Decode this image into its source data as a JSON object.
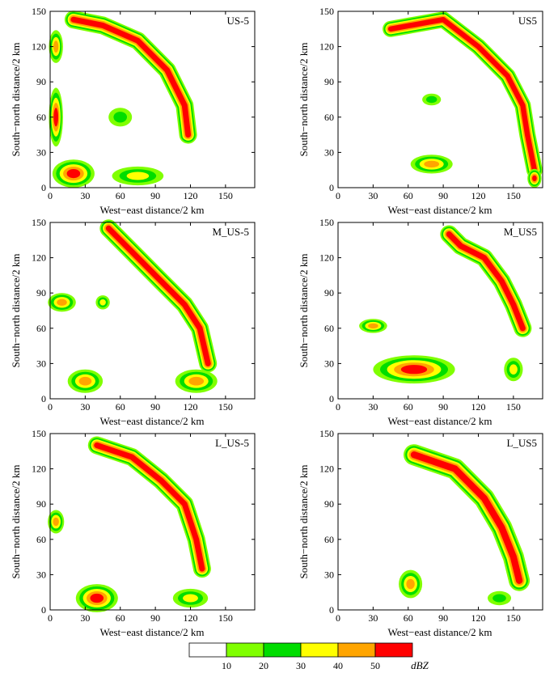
{
  "figure": {
    "xlabel": "West−east distance/2 km",
    "ylabel": "South−north distance/2 km",
    "xticks": [
      "0",
      "30",
      "60",
      "90",
      "120",
      "150"
    ],
    "yticks": [
      "0",
      "30",
      "60",
      "90",
      "120",
      "150"
    ],
    "colorbar": {
      "ticks": [
        "10",
        "20",
        "30",
        "40",
        "50"
      ],
      "unit": "dBZ",
      "levels": [
        {
          "min": 0,
          "max": 10,
          "color": "#ffffff"
        },
        {
          "min": 10,
          "max": 20,
          "color": "#80ff00"
        },
        {
          "min": 20,
          "max": 30,
          "color": "#00dd00"
        },
        {
          "min": 30,
          "max": 40,
          "color": "#ffff00"
        },
        {
          "min": 40,
          "max": 50,
          "color": "#ffa500"
        },
        {
          "min": 50,
          "max": 60,
          "color": "#ff0000"
        }
      ]
    }
  },
  "chart_data": [
    {
      "type": "heatmap",
      "title": "US-5",
      "xlim": [
        0,
        175
      ],
      "ylim": [
        0,
        150
      ],
      "units": "dBZ",
      "features": [
        {
          "shape": "band",
          "points": [
            [
              20,
              143
            ],
            [
              45,
              138
            ],
            [
              75,
              125
            ],
            [
              100,
              100
            ],
            [
              115,
              70
            ],
            [
              118,
              45
            ]
          ],
          "width": 22,
          "peak_dbz": 55
        },
        {
          "shape": "blob",
          "center": [
            5,
            60
          ],
          "radius": [
            6,
            25
          ],
          "peak_dbz": 52
        },
        {
          "shape": "blob",
          "center": [
            5,
            120
          ],
          "radius": [
            6,
            14
          ],
          "peak_dbz": 45
        },
        {
          "shape": "blob",
          "center": [
            20,
            12
          ],
          "radius": [
            18,
            12
          ],
          "peak_dbz": 52
        },
        {
          "shape": "blob",
          "center": [
            75,
            10
          ],
          "radius": [
            22,
            8
          ],
          "peak_dbz": 38
        },
        {
          "shape": "blob",
          "center": [
            60,
            60
          ],
          "radius": [
            10,
            8
          ],
          "peak_dbz": 28
        }
      ]
    },
    {
      "type": "heatmap",
      "title": "US5",
      "xlim": [
        0,
        175
      ],
      "ylim": [
        0,
        150
      ],
      "units": "dBZ",
      "features": [
        {
          "shape": "band",
          "points": [
            [
              45,
              135
            ],
            [
              90,
              143
            ],
            [
              120,
              120
            ],
            [
              145,
              95
            ],
            [
              158,
              70
            ],
            [
              162,
              45
            ],
            [
              168,
              15
            ]
          ],
          "width": 20,
          "peak_dbz": 58
        },
        {
          "shape": "blob",
          "center": [
            80,
            20
          ],
          "radius": [
            18,
            8
          ],
          "peak_dbz": 42
        },
        {
          "shape": "blob",
          "center": [
            80,
            75
          ],
          "radius": [
            8,
            5
          ],
          "peak_dbz": 25
        },
        {
          "shape": "blob",
          "center": [
            168,
            8
          ],
          "radius": [
            6,
            8
          ],
          "peak_dbz": 55
        }
      ]
    },
    {
      "type": "heatmap",
      "title": "M_US-5",
      "xlim": [
        0,
        175
      ],
      "ylim": [
        0,
        150
      ],
      "units": "dBZ",
      "features": [
        {
          "shape": "band",
          "points": [
            [
              50,
              145
            ],
            [
              70,
              125
            ],
            [
              95,
              100
            ],
            [
              115,
              80
            ],
            [
              128,
              60
            ],
            [
              135,
              30
            ]
          ],
          "width": 22,
          "peak_dbz": 56
        },
        {
          "shape": "blob",
          "center": [
            10,
            82
          ],
          "radius": [
            12,
            8
          ],
          "peak_dbz": 50
        },
        {
          "shape": "blob",
          "center": [
            45,
            82
          ],
          "radius": [
            6,
            6
          ],
          "peak_dbz": 40
        },
        {
          "shape": "blob",
          "center": [
            30,
            15
          ],
          "radius": [
            15,
            10
          ],
          "peak_dbz": 48
        },
        {
          "shape": "blob",
          "center": [
            125,
            15
          ],
          "radius": [
            18,
            10
          ],
          "peak_dbz": 45
        }
      ]
    },
    {
      "type": "heatmap",
      "title": "M_US5",
      "xlim": [
        0,
        175
      ],
      "ylim": [
        0,
        150
      ],
      "units": "dBZ",
      "features": [
        {
          "shape": "band",
          "points": [
            [
              95,
              140
            ],
            [
              105,
              130
            ],
            [
              125,
              120
            ],
            [
              140,
              100
            ],
            [
              150,
              80
            ],
            [
              158,
              60
            ]
          ],
          "width": 22,
          "peak_dbz": 60
        },
        {
          "shape": "blob",
          "center": [
            65,
            25
          ],
          "radius": [
            35,
            12
          ],
          "peak_dbz": 52
        },
        {
          "shape": "blob",
          "center": [
            30,
            62
          ],
          "radius": [
            12,
            6
          ],
          "peak_dbz": 45
        },
        {
          "shape": "blob",
          "center": [
            150,
            25
          ],
          "radius": [
            8,
            10
          ],
          "peak_dbz": 38
        }
      ]
    },
    {
      "type": "heatmap",
      "title": "L_US-5",
      "xlim": [
        0,
        175
      ],
      "ylim": [
        0,
        150
      ],
      "units": "dBZ",
      "features": [
        {
          "shape": "band",
          "points": [
            [
              40,
              140
            ],
            [
              70,
              130
            ],
            [
              95,
              110
            ],
            [
              115,
              90
            ],
            [
              125,
              60
            ],
            [
              130,
              35
            ]
          ],
          "width": 22,
          "peak_dbz": 56
        },
        {
          "shape": "blob",
          "center": [
            40,
            10
          ],
          "radius": [
            18,
            12
          ],
          "peak_dbz": 55
        },
        {
          "shape": "blob",
          "center": [
            5,
            75
          ],
          "radius": [
            7,
            10
          ],
          "peak_dbz": 45
        },
        {
          "shape": "blob",
          "center": [
            120,
            10
          ],
          "radius": [
            15,
            8
          ],
          "peak_dbz": 40
        }
      ]
    },
    {
      "type": "heatmap",
      "title": "L_US5",
      "xlim": [
        0,
        175
      ],
      "ylim": [
        0,
        150
      ],
      "units": "dBZ",
      "features": [
        {
          "shape": "band",
          "points": [
            [
              65,
              132
            ],
            [
              100,
              120
            ],
            [
              125,
              95
            ],
            [
              140,
              70
            ],
            [
              150,
              45
            ],
            [
              155,
              25
            ]
          ],
          "width": 26,
          "peak_dbz": 58
        },
        {
          "shape": "blob",
          "center": [
            62,
            22
          ],
          "radius": [
            10,
            12
          ],
          "peak_dbz": 50
        },
        {
          "shape": "blob",
          "center": [
            138,
            10
          ],
          "radius": [
            10,
            6
          ],
          "peak_dbz": 30
        }
      ]
    }
  ]
}
